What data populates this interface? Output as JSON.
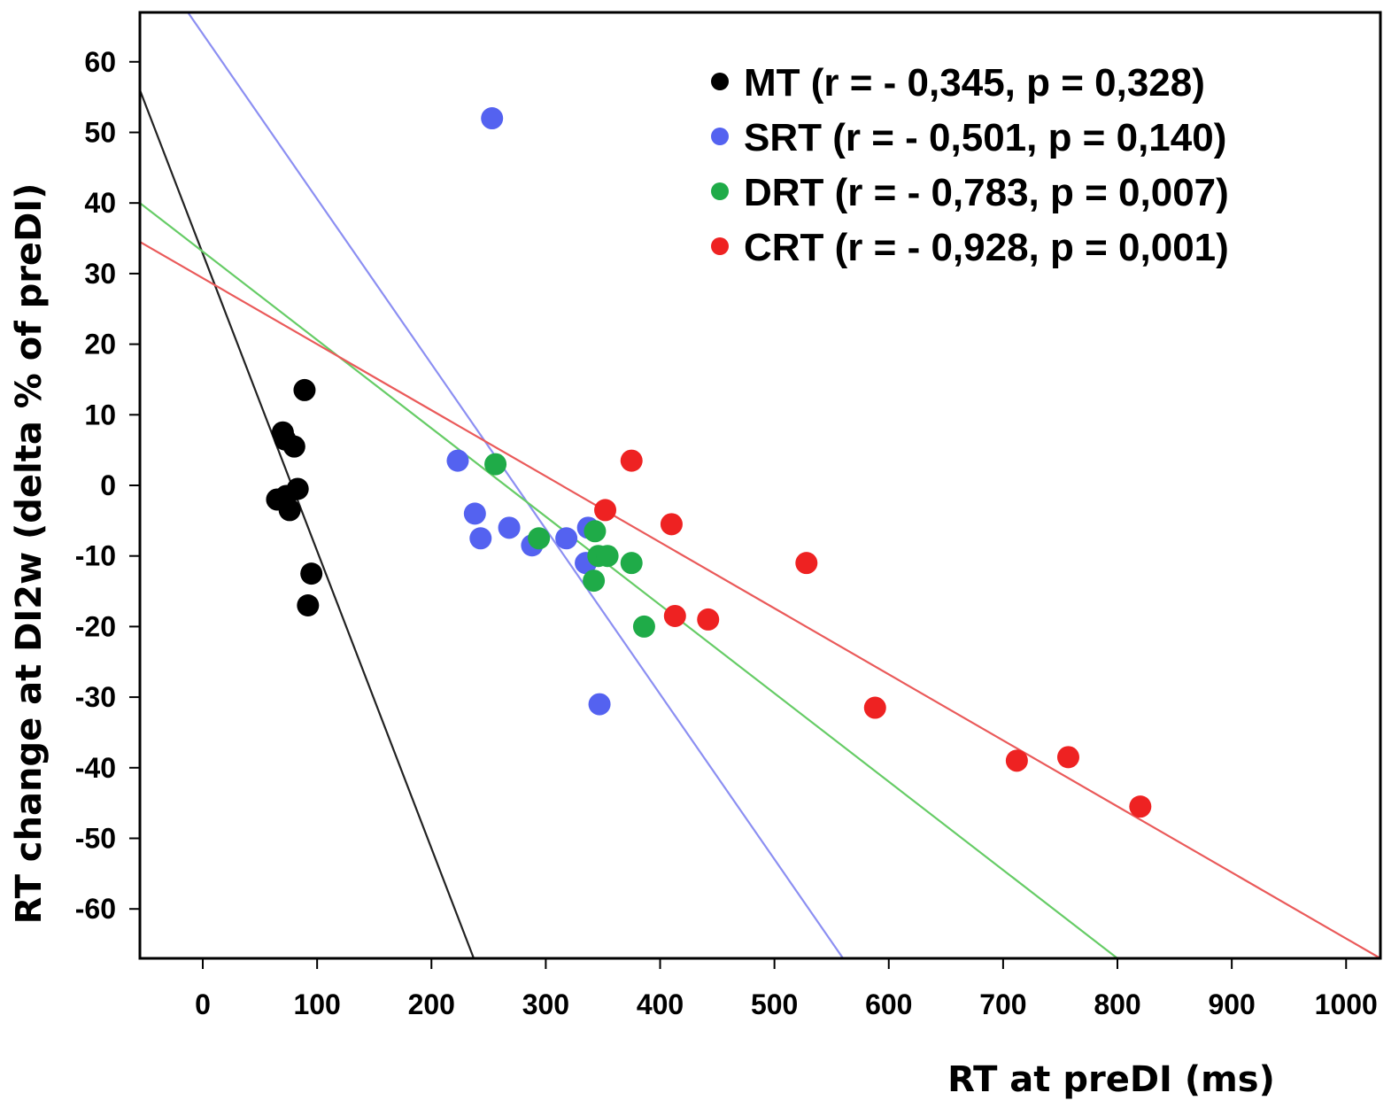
{
  "chart_data": {
    "type": "scatter",
    "title": "",
    "xlabel": "RT at preDI (ms)",
    "ylabel": "RT change at DI2w (delta % of preDI)",
    "xlim": [
      -55,
      1030
    ],
    "ylim": [
      -67,
      67
    ],
    "xticks": [
      0,
      100,
      200,
      300,
      400,
      500,
      600,
      700,
      800,
      900,
      1000
    ],
    "yticks": [
      60,
      50,
      40,
      30,
      20,
      10,
      0,
      -10,
      -20,
      -30,
      -40,
      -50,
      -60
    ],
    "grid": false,
    "legend_position": "top-right",
    "series": [
      {
        "name": "MT",
        "legend": "MT (r = - 0,345, p = 0,328)",
        "color": "#000000",
        "line_color": "#222222",
        "points": [
          [
            89,
            13.5
          ],
          [
            70,
            7.5
          ],
          [
            72,
            6.5
          ],
          [
            80,
            5.5
          ],
          [
            83,
            -0.5
          ],
          [
            73,
            -1.5
          ],
          [
            65,
            -2
          ],
          [
            76,
            -3.5
          ],
          [
            95,
            -12.5
          ],
          [
            92,
            -17
          ]
        ],
        "fit": {
          "x": [
            -55,
            237
          ],
          "y": [
            56,
            -67
          ]
        }
      },
      {
        "name": "SRT",
        "legend": "SRT (r = - 0,501, p = 0,140)",
        "color": "#5462f0",
        "line_color": "#8c8ff2",
        "points": [
          [
            253,
            52
          ],
          [
            223,
            3.5
          ],
          [
            238,
            -4
          ],
          [
            243,
            -7.5
          ],
          [
            268,
            -6
          ],
          [
            288,
            -8.5
          ],
          [
            318,
            -7.5
          ],
          [
            337,
            -6
          ],
          [
            335,
            -11
          ],
          [
            347,
            -31
          ]
        ],
        "fit": {
          "x": [
            -13,
            560
          ],
          "y": [
            67,
            -67
          ]
        }
      },
      {
        "name": "DRT",
        "legend": "DRT (r = - 0,783, p = 0,007)",
        "color": "#1fab48",
        "line_color": "#66cc66",
        "points": [
          [
            256,
            3
          ],
          [
            294,
            -7.5
          ],
          [
            343,
            -6.5
          ],
          [
            346,
            -10
          ],
          [
            354,
            -10
          ],
          [
            342,
            -13.5
          ],
          [
            375,
            -11
          ],
          [
            386,
            -20
          ]
        ],
        "fit": {
          "x": [
            -55,
            800
          ],
          "y": [
            40,
            -67
          ]
        }
      },
      {
        "name": "CRT",
        "legend": "CRT (r = - 0,928, p = 0,001)",
        "color": "#ee2222",
        "line_color": "#ea5a5a",
        "points": [
          [
            375,
            3.5
          ],
          [
            352,
            -3.5
          ],
          [
            410,
            -5.5
          ],
          [
            528,
            -11
          ],
          [
            413,
            -18.5
          ],
          [
            442,
            -19
          ],
          [
            588,
            -31.5
          ],
          [
            712,
            -39
          ],
          [
            757,
            -38.5
          ],
          [
            820,
            -45.5
          ]
        ],
        "fit": {
          "x": [
            -55,
            1030
          ],
          "y": [
            34.5,
            -67
          ]
        }
      }
    ]
  }
}
